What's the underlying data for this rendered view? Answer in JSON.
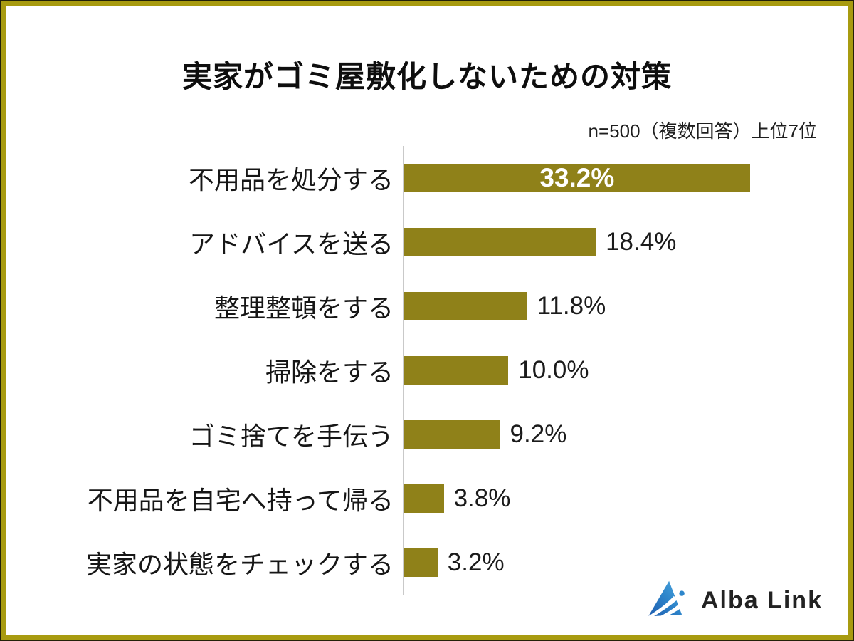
{
  "title": "実家がゴミ屋敷化しないための対策",
  "note": "n=500（複数回答）上位7位",
  "colors": {
    "bar": "#8f8119",
    "frame_gold": "#a89b10",
    "frame_dark": "#232108",
    "axis": "#c9c9c9",
    "value_inside": "#ffffff",
    "logo_blue": "#2e86cb",
    "logo_blue_dark": "#1e5cae",
    "logo_blue_light": "#4fa8de",
    "logo_text": "#222222"
  },
  "chart_data": {
    "type": "bar",
    "orientation": "horizontal",
    "title": "実家がゴミ屋敷化しないための対策",
    "subtitle": "n=500（複数回答）上位7位",
    "categories": [
      "不用品を処分する",
      "アドバイスを送る",
      "整理整頓をする",
      "掃除をする",
      "ゴミ捨てを手伝う",
      "不用品を自宅へ持って帰る",
      "実家の状態をチェックする"
    ],
    "values": [
      33.2,
      18.4,
      11.8,
      10.0,
      9.2,
      3.8,
      3.2
    ],
    "value_labels": [
      "33.2%",
      "18.4%",
      "11.8%",
      "10.0%",
      "9.2%",
      "3.8%",
      "3.2%"
    ],
    "xlabel": "",
    "ylabel": "",
    "xlim": [
      0,
      40
    ],
    "grid": false,
    "legend": false,
    "value_label_position": "first-inside-others-outside"
  },
  "logo": {
    "text": "Alba Link"
  }
}
